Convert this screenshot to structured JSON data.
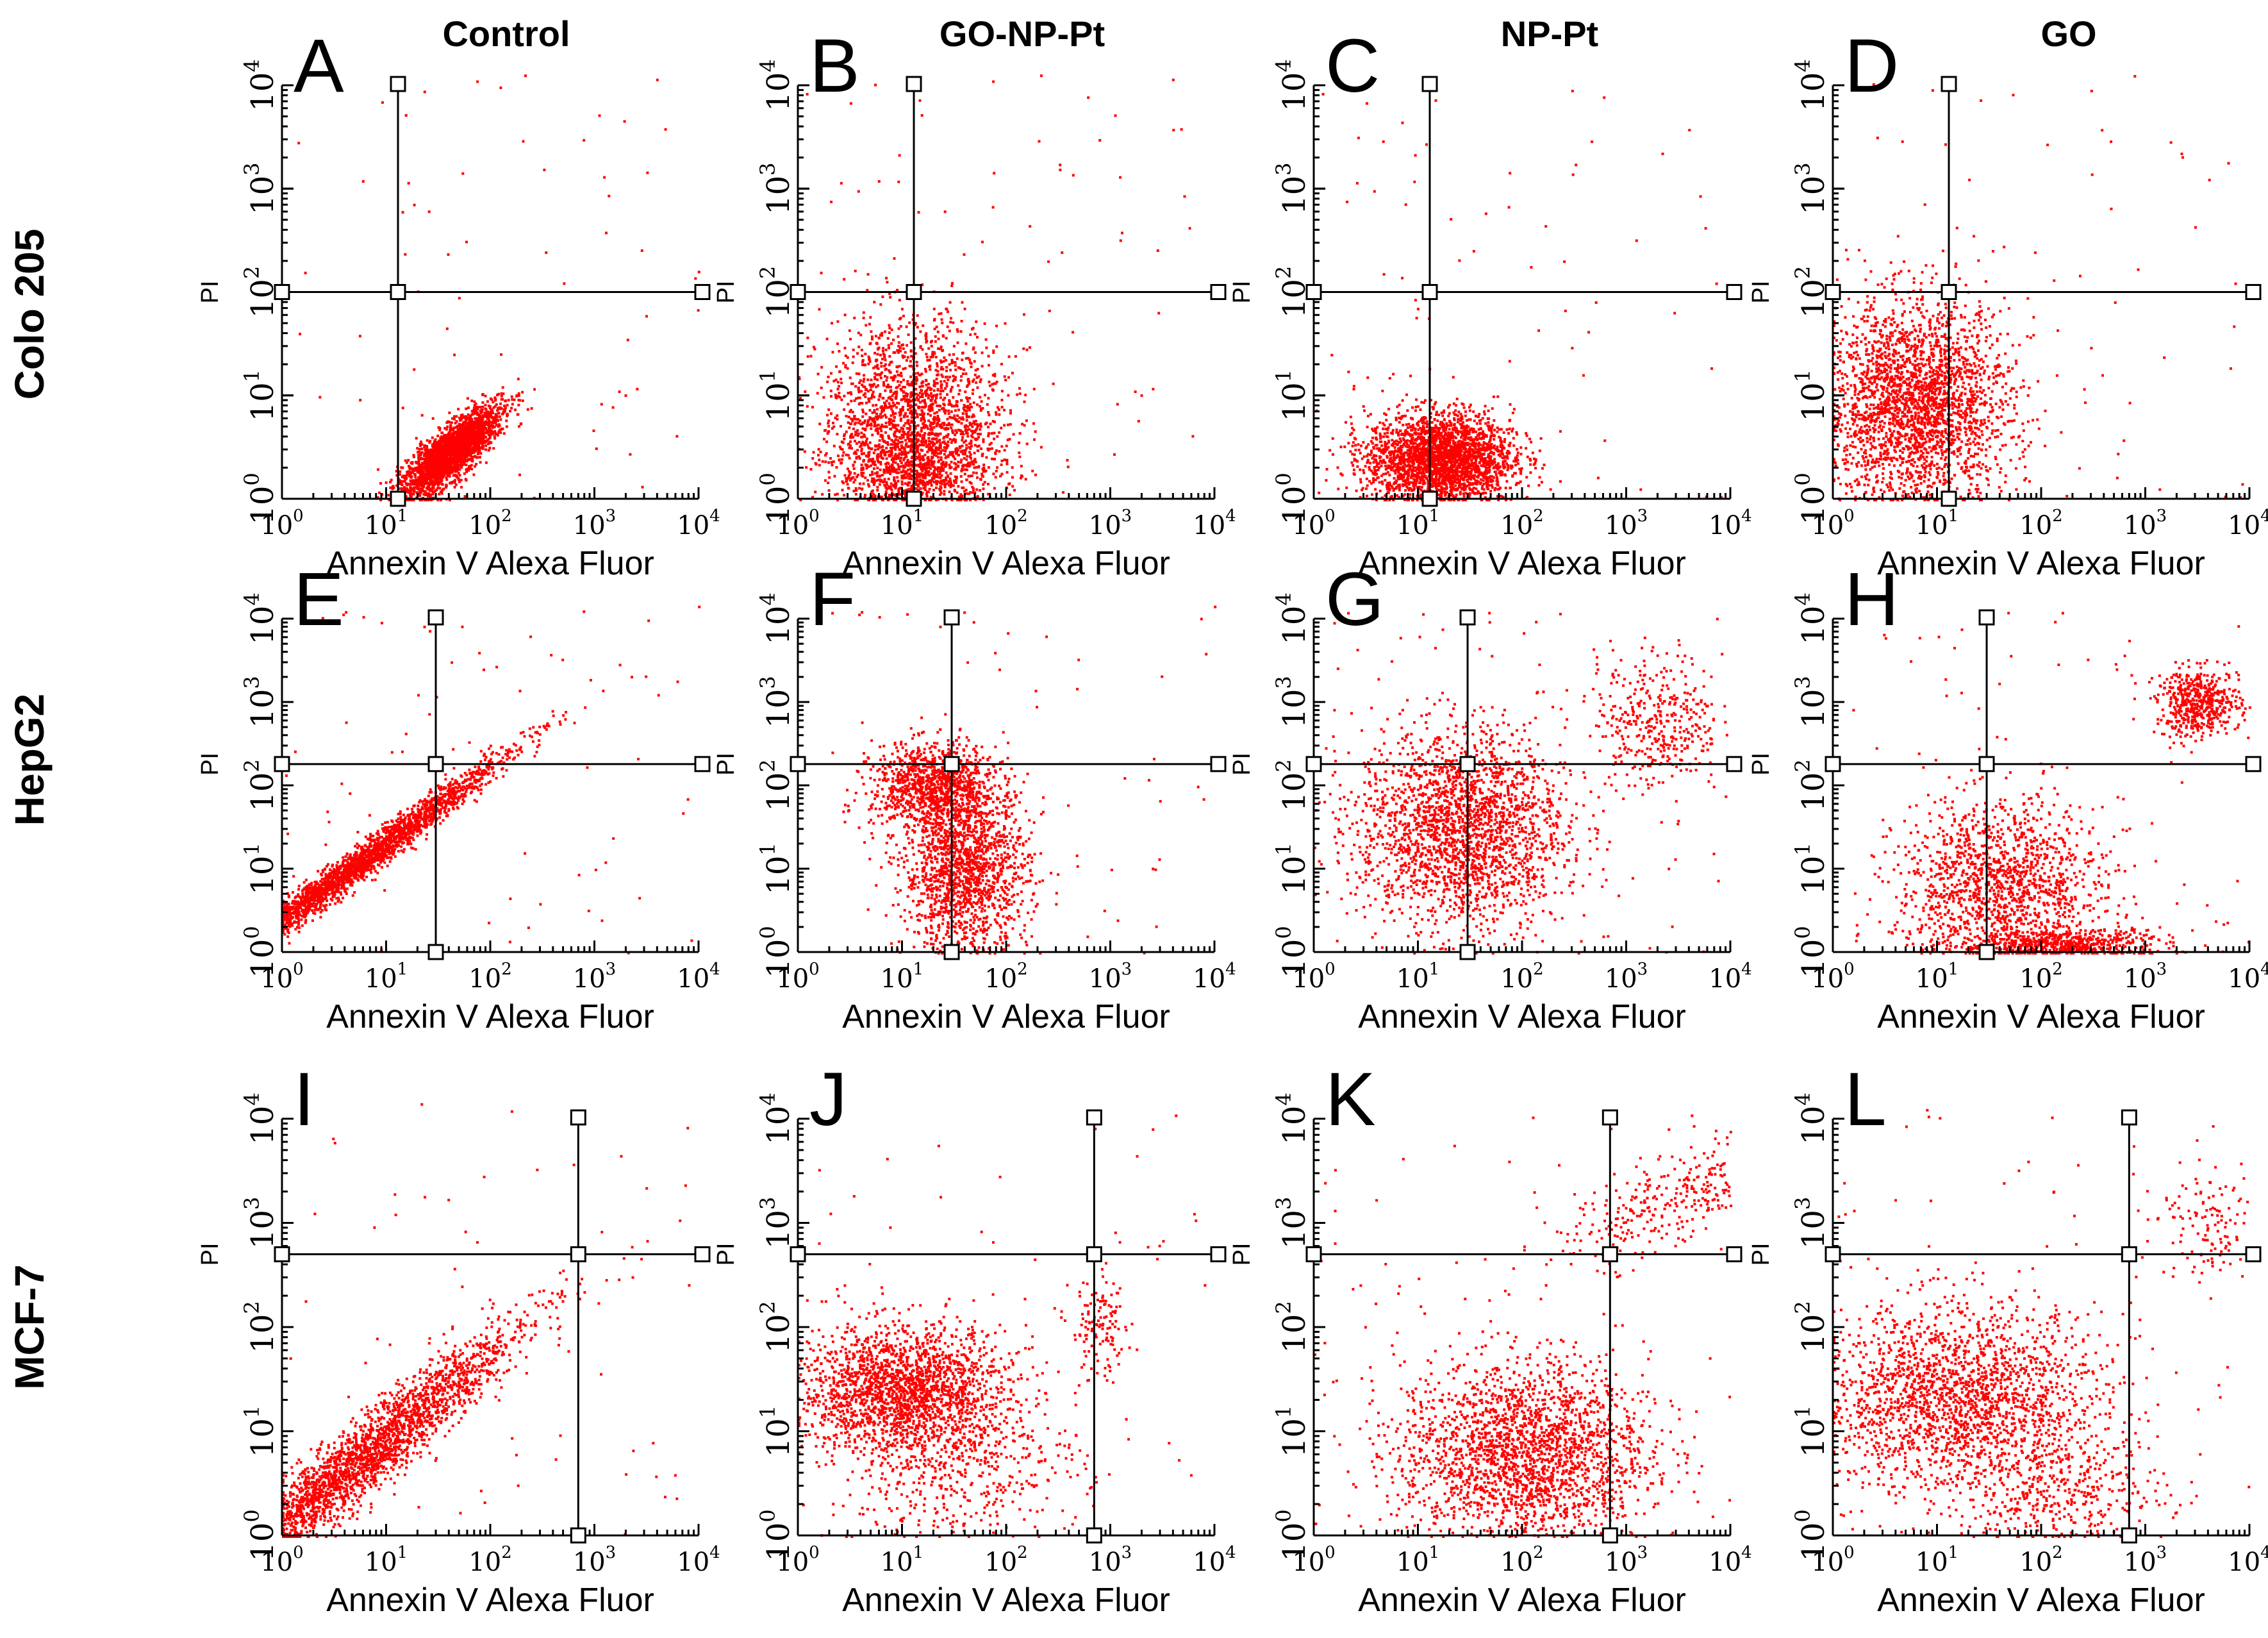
{
  "colors": {
    "dots": "#ff0000",
    "axes": "#000000",
    "background": "#ffffff"
  },
  "chart_data": {
    "type": "scatter",
    "layout": "3 rows x 4 columns grid of flow-cytometry dot plots",
    "column_headers": [
      "Control",
      "GO-NP-Pt",
      "NP-Pt",
      "GO"
    ],
    "row_labels": [
      "Colo 205",
      "HepG2",
      "MCF-7"
    ],
    "xlabel": "Annexin V Alexa Fluor",
    "ylabel": "PI",
    "x_scale": "log",
    "y_scale": "log",
    "xlim": [
      1,
      10000
    ],
    "ylim": [
      1,
      10000
    ],
    "x_ticks": [
      {
        "base": "10",
        "exp": "0"
      },
      {
        "base": "10",
        "exp": "1"
      },
      {
        "base": "10",
        "exp": "2"
      },
      {
        "base": "10",
        "exp": "3"
      },
      {
        "base": "10",
        "exp": "4"
      }
    ],
    "y_ticks": [
      {
        "base": "10",
        "exp": "0"
      },
      {
        "base": "10",
        "exp": "1"
      },
      {
        "base": "10",
        "exp": "2"
      },
      {
        "base": "10",
        "exp": "3"
      },
      {
        "base": "10",
        "exp": "4"
      }
    ],
    "panels": [
      {
        "letter": "A",
        "cell_line": "Colo 205",
        "treatment": "Control",
        "gate_x": 13,
        "gate_y": 100,
        "clusters": [
          {
            "cx": 1.6,
            "cy": 0.45,
            "sx": 0.11,
            "sy": 0.1,
            "rot": 0.75,
            "w": 1
          }
        ]
      },
      {
        "letter": "B",
        "cell_line": "Colo 205",
        "treatment": "GO-NP-Pt",
        "gate_x": 13,
        "gate_y": 100,
        "clusters": [
          {
            "cx": 1.1,
            "cy": 0.85,
            "sx": 0.45,
            "sy": 0.45,
            "rot": 0,
            "w": 0.6
          },
          {
            "cx": 1.15,
            "cy": 0.3,
            "sx": 0.4,
            "sy": 0.25,
            "rot": 0,
            "w": 0.4
          }
        ]
      },
      {
        "letter": "C",
        "cell_line": "Colo 205",
        "treatment": "NP-Pt",
        "gate_x": 13,
        "gate_y": 100,
        "clusters": [
          {
            "cx": 1.2,
            "cy": 0.4,
            "sx": 0.35,
            "sy": 0.22,
            "rot": 0,
            "w": 1
          }
        ]
      },
      {
        "letter": "D",
        "cell_line": "Colo 205",
        "treatment": "GO",
        "gate_x": 13,
        "gate_y": 100,
        "clusters": [
          {
            "cx": 0.8,
            "cy": 0.9,
            "sx": 0.45,
            "sy": 0.5,
            "rot": 0,
            "w": 1
          }
        ]
      },
      {
        "letter": "E",
        "cell_line": "HepG2",
        "treatment": "Control",
        "gate_x": 30,
        "gate_y": 180,
        "clusters": [
          {
            "cx": 0.65,
            "cy": 1.0,
            "sx": 0.35,
            "sy": 0.08,
            "rot": 0.75,
            "w": 1
          }
        ]
      },
      {
        "letter": "F",
        "cell_line": "HepG2",
        "treatment": "GO-NP-Pt",
        "gate_x": 30,
        "gate_y": 180,
        "clusters": [
          {
            "cx": 1.3,
            "cy": 2.0,
            "sx": 0.3,
            "sy": 0.25,
            "rot": 0,
            "w": 0.4
          },
          {
            "cx": 1.6,
            "cy": 1.0,
            "sx": 0.3,
            "sy": 0.5,
            "rot": 0,
            "w": 0.6
          }
        ]
      },
      {
        "letter": "G",
        "cell_line": "HepG2",
        "treatment": "NP-Pt",
        "gate_x": 30,
        "gate_y": 180,
        "clusters": [
          {
            "cx": 1.4,
            "cy": 1.5,
            "sx": 0.5,
            "sy": 0.6,
            "rot": 0,
            "w": 0.85
          },
          {
            "cx": 3.3,
            "cy": 2.8,
            "sx": 0.3,
            "sy": 0.4,
            "rot": 0,
            "w": 0.15
          }
        ]
      },
      {
        "letter": "H",
        "cell_line": "HepG2",
        "treatment": "GO",
        "gate_x": 30,
        "gate_y": 180,
        "clusters": [
          {
            "cx": 1.6,
            "cy": 0.8,
            "sx": 0.5,
            "sy": 0.5,
            "rot": 0,
            "w": 0.55
          },
          {
            "cx": 2.2,
            "cy": 0.1,
            "sx": 0.5,
            "sy": 0.1,
            "rot": 0,
            "w": 0.25
          },
          {
            "cx": 3.5,
            "cy": 3.0,
            "sx": 0.2,
            "sy": 0.2,
            "rot": 0,
            "w": 0.2
          }
        ]
      },
      {
        "letter": "I",
        "cell_line": "MCF-7",
        "treatment": "Control",
        "gate_x": 700,
        "gate_y": 500,
        "clusters": [
          {
            "cx": 0.7,
            "cy": 0.7,
            "sx": 0.35,
            "sy": 0.15,
            "rot": 0.7,
            "w": 1
          }
        ]
      },
      {
        "letter": "J",
        "cell_line": "MCF-7",
        "treatment": "GO-NP-Pt",
        "gate_x": 700,
        "gate_y": 500,
        "clusters": [
          {
            "cx": 1.0,
            "cy": 1.4,
            "sx": 0.5,
            "sy": 0.3,
            "rot": 0,
            "w": 0.75
          },
          {
            "cx": 2.9,
            "cy": 2.0,
            "sx": 0.15,
            "sy": 0.25,
            "rot": 0,
            "w": 0.05
          },
          {
            "cx": 1.5,
            "cy": 0.7,
            "sx": 0.6,
            "sy": 0.4,
            "rot": 0,
            "w": 0.2
          }
        ]
      },
      {
        "letter": "K",
        "cell_line": "MCF-7",
        "treatment": "NP-Pt",
        "gate_x": 700,
        "gate_y": 500,
        "clusters": [
          {
            "cx": 2.0,
            "cy": 0.8,
            "sx": 0.6,
            "sy": 0.45,
            "rot": 0,
            "w": 0.85
          },
          {
            "cx": 3.6,
            "cy": 3.3,
            "sx": 0.25,
            "sy": 0.2,
            "rot": 0.4,
            "w": 0.15
          }
        ]
      },
      {
        "letter": "L",
        "cell_line": "MCF-7",
        "treatment": "GO",
        "gate_x": 700,
        "gate_y": 500,
        "clusters": [
          {
            "cx": 1.2,
            "cy": 1.3,
            "sx": 0.7,
            "sy": 0.45,
            "rot": 0,
            "w": 0.8
          },
          {
            "cx": 2.2,
            "cy": 0.4,
            "sx": 0.5,
            "sy": 0.3,
            "rot": 0,
            "w": 0.15
          },
          {
            "cx": 3.6,
            "cy": 3.0,
            "sx": 0.25,
            "sy": 0.25,
            "rot": 0,
            "w": 0.05
          }
        ]
      }
    ]
  }
}
